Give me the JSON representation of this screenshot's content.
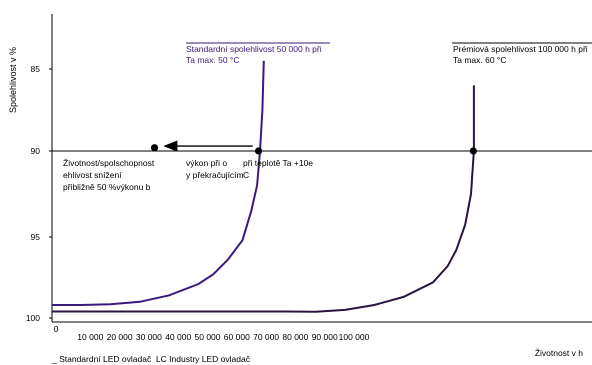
{
  "chart_data": {
    "type": "line",
    "ylabel": "Spolehlivost v %",
    "xlabel": "Životnost v h",
    "y_ticks": [
      "85",
      "90",
      "95",
      "100"
    ],
    "y_tick_values": [
      85,
      90,
      95,
      100
    ],
    "x_ticks": [
      "0",
      "10 000",
      "20 000",
      "30 000",
      "40 000",
      "50 000",
      "60 000",
      "70 000",
      "80 000",
      "90 000",
      "100 000"
    ],
    "x_tick_values": [
      0,
      10000,
      20000,
      30000,
      40000,
      50000,
      60000,
      70000,
      80000,
      90000,
      100000
    ],
    "ylim": [
      83,
      100
    ],
    "xlim": [
      0,
      144000
    ],
    "reference_line": 90,
    "series": [
      {
        "color": "#3a1a7a",
        "points": [
          [
            0,
            99.2
          ],
          [
            10000,
            99.2
          ],
          [
            20000,
            99.15
          ],
          [
            30000,
            99.0
          ],
          [
            40000,
            98.6
          ],
          [
            50000,
            97.9
          ],
          [
            55000,
            97.3
          ],
          [
            60000,
            96.4
          ],
          [
            65000,
            95.2
          ],
          [
            68000,
            93.5
          ],
          [
            70000,
            92.0
          ],
          [
            71000,
            90.0
          ],
          [
            71800,
            87.5
          ],
          [
            72300,
            84.5
          ]
        ]
      },
      {
        "color": "#2a1440",
        "points": [
          [
            0,
            99.6
          ],
          [
            20000,
            99.6
          ],
          [
            40000,
            99.6
          ],
          [
            60000,
            99.6
          ],
          [
            80000,
            99.6
          ],
          [
            90000,
            99.62
          ],
          [
            100000,
            99.5
          ],
          [
            110000,
            99.2
          ],
          [
            120000,
            98.7
          ],
          [
            130000,
            97.8
          ],
          [
            135000,
            96.8
          ],
          [
            138000,
            95.8
          ],
          [
            141000,
            94.3
          ],
          [
            143000,
            92.5
          ],
          [
            144000,
            90.0
          ],
          [
            144000,
            86.0
          ]
        ]
      }
    ],
    "markers": [
      [
        35000,
        89.8
      ],
      [
        70500,
        90.0
      ],
      [
        143800,
        90.0
      ]
    ],
    "arrow": {
      "from": [
        68500,
        89.7
      ],
      "to": [
        38500,
        89.7
      ]
    },
    "annotations": {
      "standard_box": [
        "Standardní spolehlivost 50 000 h při",
        "Ta max. 50 °C"
      ],
      "premium_box": [
        "Prémiová spolehlivost 100 000 h při",
        "Ta max. 60 °C"
      ],
      "col1": [
        "Životnost/spolschopnost",
        "ehlivost snížení",
        "přibližně 50 %výkonu b"
      ],
      "col2": [
        "výkon při o",
        "y překračujícím"
      ],
      "col3": [
        "při teplotě Ta +10e",
        "C"
      ]
    },
    "legend": "_ Standardní LED ovladač  LC Industry LED ovladač"
  }
}
